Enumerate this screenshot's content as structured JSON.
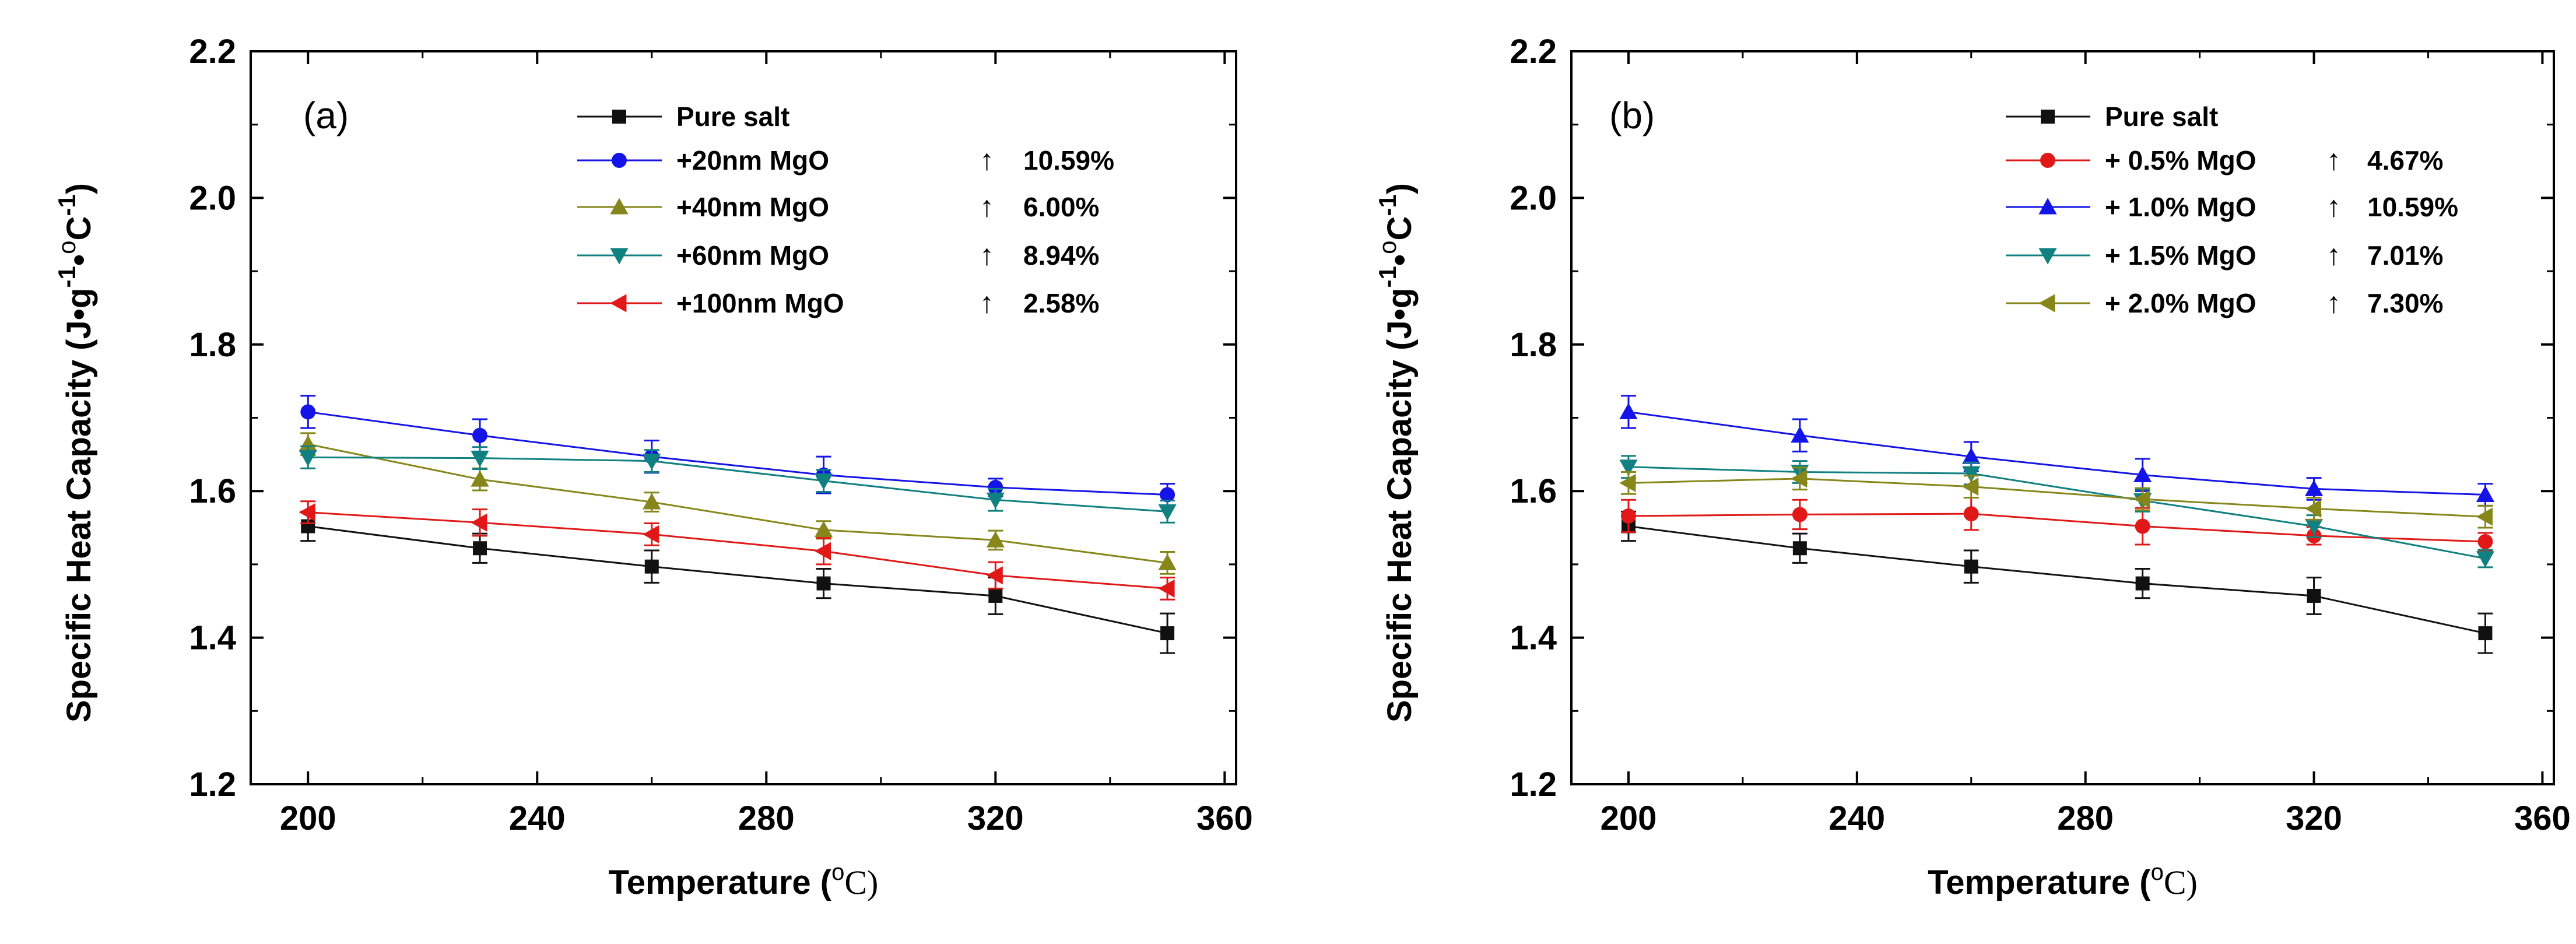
{
  "chart_data": [
    {
      "type": "line",
      "panel_label": "(a)",
      "xlabel": "Temperature (°C)",
      "ylabel": "Specific Heat Capacity (J•g-1•°C-1)",
      "xlabel_parts": [
        "Temperature (",
        "o",
        "C)"
      ],
      "ylabel_parts": [
        "Specific Heat Capacity (J",
        "•",
        "g",
        "-1",
        "•",
        "o",
        "C",
        "-1",
        ")"
      ],
      "xlim": [
        190,
        362
      ],
      "ylim": [
        1.2,
        2.2
      ],
      "xticks": [
        200,
        240,
        280,
        320,
        360
      ],
      "yticks": [
        1.2,
        1.4,
        1.6,
        1.8,
        2.0,
        2.2
      ],
      "ytick_labels": [
        "1.2",
        "1.4",
        "1.6",
        "1.8",
        "2.0",
        "2.2"
      ],
      "x": [
        200,
        230,
        260,
        290,
        320,
        350
      ],
      "legend_position": "top-right",
      "series": [
        {
          "name": "Pure salt",
          "color": "#111111",
          "marker": "square",
          "values": [
            1.552,
            1.522,
            1.497,
            1.474,
            1.457,
            1.406
          ],
          "errors": [
            0.02,
            0.02,
            0.022,
            0.02,
            0.025,
            0.027
          ],
          "increase": ""
        },
        {
          "name": "+20nm MgO",
          "color": "#1414e6",
          "marker": "circle",
          "values": [
            1.708,
            1.676,
            1.647,
            1.622,
            1.605,
            1.595
          ],
          "errors": [
            0.022,
            0.022,
            0.022,
            0.025,
            0.012,
            0.015
          ],
          "increase": "10.59%"
        },
        {
          "name": "+40nm MgO",
          "color": "#86861a",
          "marker": "triangle-up",
          "values": [
            1.664,
            1.616,
            1.585,
            1.547,
            1.533,
            1.502
          ],
          "errors": [
            0.015,
            0.015,
            0.013,
            0.012,
            0.013,
            0.015
          ],
          "increase": "6.00%"
        },
        {
          "name": "+60nm MgO",
          "color": "#118080",
          "marker": "triangle-down",
          "values": [
            1.646,
            1.645,
            1.641,
            1.614,
            1.588,
            1.572
          ],
          "errors": [
            0.015,
            0.015,
            0.015,
            0.015,
            0.015,
            0.015
          ],
          "increase": "8.94%"
        },
        {
          "name": "+100nm MgO",
          "color": "#e01818",
          "marker": "triangle-left",
          "values": [
            1.571,
            1.557,
            1.541,
            1.518,
            1.485,
            1.467
          ],
          "errors": [
            0.015,
            0.018,
            0.015,
            0.018,
            0.018,
            0.015
          ],
          "increase": "2.58%"
        }
      ]
    },
    {
      "type": "line",
      "panel_label": "(b)",
      "xlabel": "Temperature (°C)",
      "ylabel": "Specific Heat Capacity (J•g-1•°C-1)",
      "xlabel_parts": [
        "Temperature (",
        "o",
        "C)"
      ],
      "ylabel_parts": [
        "Specific Heat Capacity (J",
        "•",
        "g",
        "-1",
        "•",
        "o",
        "C",
        "-1",
        ")"
      ],
      "xlim": [
        190,
        362
      ],
      "ylim": [
        1.2,
        2.2
      ],
      "xticks": [
        200,
        240,
        280,
        320,
        360
      ],
      "yticks": [
        1.2,
        1.4,
        1.6,
        1.8,
        2.0,
        2.2
      ],
      "ytick_labels": [
        "1.2",
        "1.4",
        "1.6",
        "1.8",
        "2.0",
        "2.2"
      ],
      "x": [
        200,
        230,
        260,
        290,
        320,
        350
      ],
      "legend_position": "top-right",
      "series": [
        {
          "name": "Pure salt",
          "color": "#111111",
          "marker": "square",
          "values": [
            1.552,
            1.522,
            1.497,
            1.474,
            1.457,
            1.406
          ],
          "errors": [
            0.02,
            0.02,
            0.022,
            0.02,
            0.025,
            0.027
          ],
          "increase": ""
        },
        {
          "name": "+ 0.5% MgO",
          "color": "#e01818",
          "marker": "circle",
          "values": [
            1.566,
            1.568,
            1.569,
            1.552,
            1.539,
            1.531
          ],
          "errors": [
            0.022,
            0.02,
            0.022,
            0.025,
            0.012,
            0.012
          ],
          "increase": "4.67%"
        },
        {
          "name": "+ 1.0% MgO",
          "color": "#1414e6",
          "marker": "triangle-up",
          "values": [
            1.708,
            1.676,
            1.647,
            1.622,
            1.603,
            1.595
          ],
          "errors": [
            0.022,
            0.022,
            0.02,
            0.022,
            0.015,
            0.015
          ],
          "increase": "10.59%"
        },
        {
          "name": "+ 1.5% MgO",
          "color": "#118080",
          "marker": "triangle-down",
          "values": [
            1.633,
            1.626,
            1.624,
            1.587,
            1.552,
            1.508
          ],
          "errors": [
            0.015,
            0.015,
            0.015,
            0.015,
            0.015,
            0.012
          ],
          "increase": "7.01%"
        },
        {
          "name": "+ 2.0% MgO",
          "color": "#86861a",
          "marker": "triangle-left",
          "values": [
            1.611,
            1.617,
            1.606,
            1.589,
            1.576,
            1.565
          ],
          "errors": [
            0.015,
            0.015,
            0.015,
            0.015,
            0.015,
            0.015
          ],
          "increase": "7.30%"
        }
      ]
    }
  ]
}
